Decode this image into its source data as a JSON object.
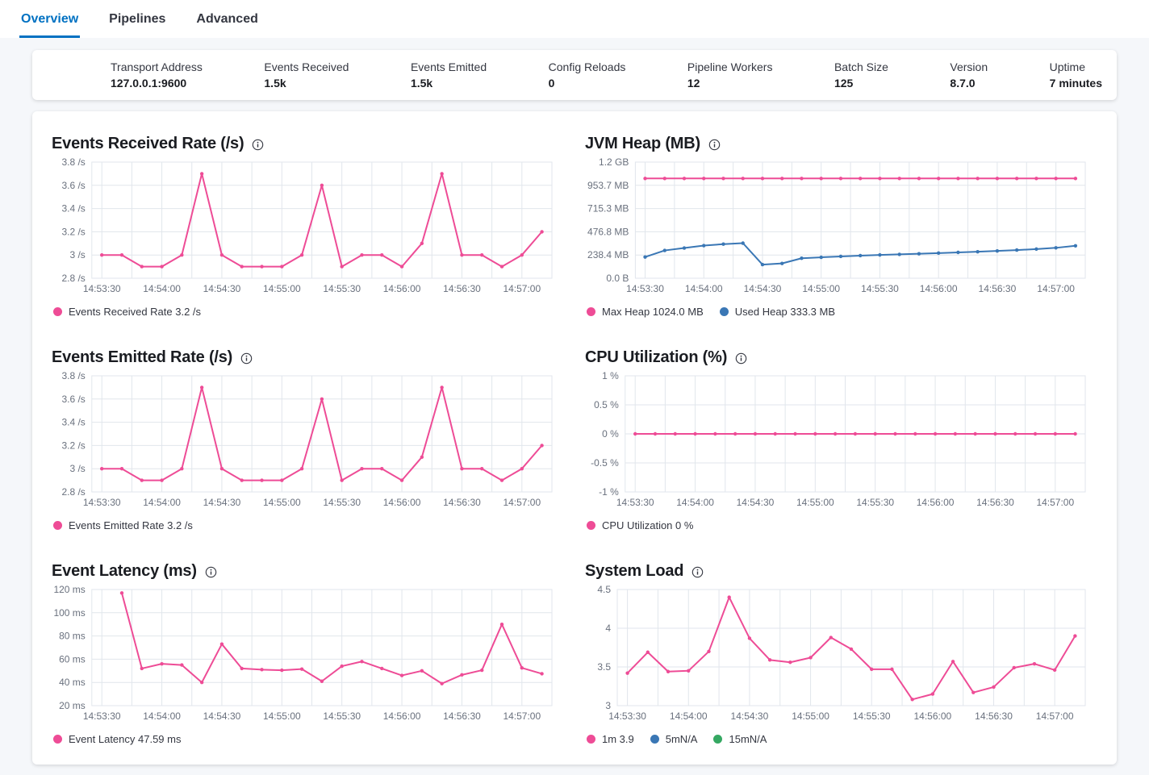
{
  "tabs": [
    {
      "label": "Overview",
      "active": true
    },
    {
      "label": "Pipelines",
      "active": false
    },
    {
      "label": "Advanced",
      "active": false
    }
  ],
  "summary": [
    {
      "label": "Transport Address",
      "value": "127.0.0.1:9600"
    },
    {
      "label": "Events Received",
      "value": "1.5k"
    },
    {
      "label": "Events Emitted",
      "value": "1.5k"
    },
    {
      "label": "Config Reloads",
      "value": "0"
    },
    {
      "label": "Pipeline Workers",
      "value": "12"
    },
    {
      "label": "Batch Size",
      "value": "125"
    },
    {
      "label": "Version",
      "value": "8.7.0"
    },
    {
      "label": "Uptime",
      "value": "7 minutes"
    }
  ],
  "colors": {
    "tab_active": "#0071C2",
    "series_pink": "#EE4C96",
    "series_blue": "#3A77B5",
    "series_green": "#35A862",
    "grid": "#E1E6EC",
    "axis_text": "#69707D",
    "title_text": "#1A1C21"
  },
  "chart_data": [
    {
      "type": "line",
      "title": "Events Received Rate (/s)",
      "x_domain": [
        "14:53:25",
        "14:57:15"
      ],
      "x_grid_start": "14:53:30",
      "x_grid_step_s": 15,
      "x_tick_labels": [
        "14:53:30",
        "14:54:00",
        "14:54:30",
        "14:55:00",
        "14:55:30",
        "14:56:00",
        "14:56:30",
        "14:57:00"
      ],
      "y_ticks": [
        {
          "v": 2.8,
          "label": "2.8 /s"
        },
        {
          "v": 3,
          "label": "3 /s"
        },
        {
          "v": 3.2,
          "label": "3.2 /s"
        },
        {
          "v": 3.4,
          "label": "3.4 /s"
        },
        {
          "v": 3.6,
          "label": "3.6 /s"
        },
        {
          "v": 3.8,
          "label": "3.8 /s"
        }
      ],
      "series": [
        {
          "name": "Events Received Rate",
          "color": "#EE4C96",
          "start": "14:53:30",
          "step_s": 10,
          "values": [
            3,
            3,
            2.9,
            2.9,
            3,
            3.7,
            3,
            2.9,
            2.9,
            2.9,
            3,
            3.6,
            2.9,
            3,
            3,
            2.9,
            3.1,
            3.7,
            3,
            3,
            2.9,
            3,
            3.2
          ]
        }
      ],
      "legend": [
        {
          "label": "Events Received Rate 3.2 /s",
          "color": "#EE4C96"
        }
      ]
    },
    {
      "type": "line",
      "title": "JVM Heap (MB)",
      "x_domain": [
        "14:53:25",
        "14:57:15"
      ],
      "x_grid_start": "14:53:30",
      "x_grid_step_s": 15,
      "x_tick_labels": [
        "14:53:30",
        "14:54:00",
        "14:54:30",
        "14:55:00",
        "14:55:30",
        "14:56:00",
        "14:56:30",
        "14:57:00"
      ],
      "y_ticks": [
        {
          "v": 0,
          "label": "0.0 B"
        },
        {
          "v": 238.4,
          "label": "238.4 MB"
        },
        {
          "v": 476.8,
          "label": "476.8 MB"
        },
        {
          "v": 715.3,
          "label": "715.3 MB"
        },
        {
          "v": 953.7,
          "label": "953.7 MB"
        },
        {
          "v": 1192.1,
          "label": "1.2 GB"
        }
      ],
      "series": [
        {
          "name": "Max Heap",
          "color": "#EE4C96",
          "start": "14:53:30",
          "step_s": 10,
          "values": [
            1024,
            1024,
            1024,
            1024,
            1024,
            1024,
            1024,
            1024,
            1024,
            1024,
            1024,
            1024,
            1024,
            1024,
            1024,
            1024,
            1024,
            1024,
            1024,
            1024,
            1024,
            1024,
            1024
          ]
        },
        {
          "name": "Used Heap",
          "color": "#3A77B5",
          "start": "14:53:30",
          "step_s": 10,
          "values": [
            218,
            285,
            310,
            335,
            350,
            360,
            140,
            152,
            205,
            215,
            224,
            232,
            239,
            245,
            251,
            258,
            265,
            272,
            280,
            289,
            299,
            312,
            333
          ]
        }
      ],
      "legend": [
        {
          "label": "Max Heap 1024.0 MB",
          "color": "#EE4C96"
        },
        {
          "label": "Used Heap 333.3 MB",
          "color": "#3A77B5"
        }
      ]
    },
    {
      "type": "line",
      "title": "Events Emitted Rate (/s)",
      "x_domain": [
        "14:53:25",
        "14:57:15"
      ],
      "x_grid_start": "14:53:30",
      "x_grid_step_s": 15,
      "x_tick_labels": [
        "14:53:30",
        "14:54:00",
        "14:54:30",
        "14:55:00",
        "14:55:30",
        "14:56:00",
        "14:56:30",
        "14:57:00"
      ],
      "y_ticks": [
        {
          "v": 2.8,
          "label": "2.8 /s"
        },
        {
          "v": 3,
          "label": "3 /s"
        },
        {
          "v": 3.2,
          "label": "3.2 /s"
        },
        {
          "v": 3.4,
          "label": "3.4 /s"
        },
        {
          "v": 3.6,
          "label": "3.6 /s"
        },
        {
          "v": 3.8,
          "label": "3.8 /s"
        }
      ],
      "series": [
        {
          "name": "Events Emitted Rate",
          "color": "#EE4C96",
          "start": "14:53:30",
          "step_s": 10,
          "values": [
            3,
            3,
            2.9,
            2.9,
            3,
            3.7,
            3,
            2.9,
            2.9,
            2.9,
            3,
            3.6,
            2.9,
            3,
            3,
            2.9,
            3.1,
            3.7,
            3,
            3,
            2.9,
            3,
            3.2
          ]
        }
      ],
      "legend": [
        {
          "label": "Events Emitted Rate 3.2 /s",
          "color": "#EE4C96"
        }
      ]
    },
    {
      "type": "line",
      "title": "CPU Utilization (%)",
      "x_domain": [
        "14:53:25",
        "14:57:15"
      ],
      "x_grid_start": "14:53:30",
      "x_grid_step_s": 15,
      "x_tick_labels": [
        "14:53:30",
        "14:54:00",
        "14:54:30",
        "14:55:00",
        "14:55:30",
        "14:56:00",
        "14:56:30",
        "14:57:00"
      ],
      "y_ticks": [
        {
          "v": -1,
          "label": "-1 %"
        },
        {
          "v": -0.5,
          "label": "-0.5 %"
        },
        {
          "v": 0,
          "label": "0 %"
        },
        {
          "v": 0.5,
          "label": "0.5 %"
        },
        {
          "v": 1,
          "label": "1 %"
        }
      ],
      "series": [
        {
          "name": "CPU Utilization",
          "color": "#EE4C96",
          "start": "14:53:30",
          "step_s": 10,
          "values": [
            0,
            0,
            0,
            0,
            0,
            0,
            0,
            0,
            0,
            0,
            0,
            0,
            0,
            0,
            0,
            0,
            0,
            0,
            0,
            0,
            0,
            0,
            0
          ]
        }
      ],
      "legend": [
        {
          "label": "CPU Utilization 0 %",
          "color": "#EE4C96"
        }
      ]
    },
    {
      "type": "line",
      "title": "Event Latency (ms)",
      "x_domain": [
        "14:53:25",
        "14:57:15"
      ],
      "x_grid_start": "14:53:30",
      "x_grid_step_s": 15,
      "x_tick_labels": [
        "14:53:30",
        "14:54:00",
        "14:54:30",
        "14:55:00",
        "14:55:30",
        "14:56:00",
        "14:56:30",
        "14:57:00"
      ],
      "y_ticks": [
        {
          "v": 20,
          "label": "20 ms"
        },
        {
          "v": 40,
          "label": "40 ms"
        },
        {
          "v": 60,
          "label": "60 ms"
        },
        {
          "v": 80,
          "label": "80 ms"
        },
        {
          "v": 100,
          "label": "100 ms"
        },
        {
          "v": 120,
          "label": "120 ms"
        }
      ],
      "series": [
        {
          "name": "Event Latency",
          "color": "#EE4C96",
          "start": "14:53:40",
          "step_s": 10,
          "values": [
            117,
            52,
            56,
            55,
            40,
            73,
            52,
            51,
            50.5,
            51.5,
            41,
            54,
            58,
            52,
            46,
            50,
            39,
            46.5,
            50.5,
            90,
            52.5,
            47.5
          ]
        }
      ],
      "legend": [
        {
          "label": "Event Latency 47.59 ms",
          "color": "#EE4C96"
        }
      ]
    },
    {
      "type": "line",
      "title": "System Load",
      "x_domain": [
        "14:53:25",
        "14:57:15"
      ],
      "x_grid_start": "14:53:30",
      "x_grid_step_s": 15,
      "x_tick_labels": [
        "14:53:30",
        "14:54:00",
        "14:54:30",
        "14:55:00",
        "14:55:30",
        "14:56:00",
        "14:56:30",
        "14:57:00"
      ],
      "y_ticks": [
        {
          "v": 3,
          "label": "3"
        },
        {
          "v": 3.5,
          "label": "3.5"
        },
        {
          "v": 4,
          "label": "4"
        },
        {
          "v": 4.5,
          "label": "4.5"
        }
      ],
      "series": [
        {
          "name": "1m",
          "color": "#EE4C96",
          "start": "14:53:30",
          "step_s": 10,
          "values": [
            3.42,
            3.69,
            3.44,
            3.45,
            3.7,
            4.4,
            3.87,
            3.59,
            3.56,
            3.62,
            3.88,
            3.73,
            3.47,
            3.47,
            3.08,
            3.15,
            3.57,
            3.17,
            3.24,
            3.49,
            3.54,
            3.46,
            3.9
          ]
        }
      ],
      "legend": [
        {
          "label": "1m 3.9",
          "color": "#EE4C96"
        },
        {
          "label": "5mN/A",
          "color": "#3A77B5"
        },
        {
          "label": "15mN/A",
          "color": "#35A862"
        }
      ]
    }
  ]
}
